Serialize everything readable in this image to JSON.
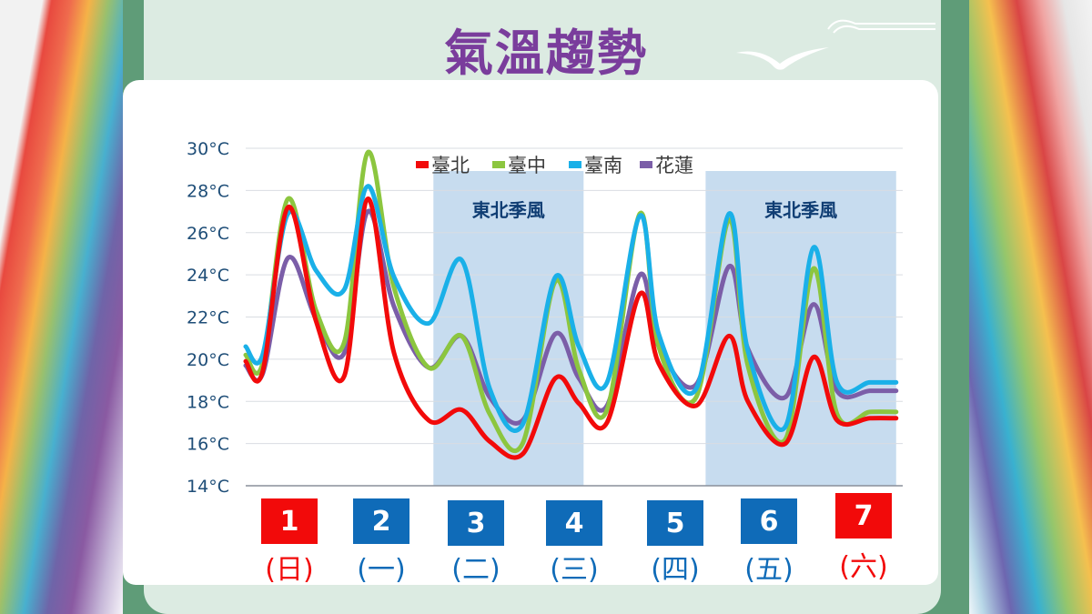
{
  "page": {
    "title": "氣溫趨勢",
    "colors": {
      "weekend": "#f20a0a",
      "weekday": "#0f6bb8",
      "title": "#7a3d9c",
      "shade": "#c7dcef"
    }
  },
  "chart_data": {
    "type": "line",
    "title": "",
    "ylim": [
      14,
      30
    ],
    "y_ticks": [
      "14°C",
      "16°C",
      "18°C",
      "20°C",
      "22°C",
      "24°C",
      "26°C",
      "28°C",
      "30°C"
    ],
    "y_tick_values": [
      14,
      16,
      18,
      20,
      22,
      24,
      26,
      28,
      30
    ],
    "xlim": [
      0,
      7
    ],
    "grid": true,
    "legend": {
      "placement": "top-center"
    },
    "categories": [
      {
        "number": "1",
        "weekday": "(日)",
        "weekend": true
      },
      {
        "number": "2",
        "weekday": "(一)",
        "weekend": false
      },
      {
        "number": "3",
        "weekday": "(二)",
        "weekend": false
      },
      {
        "number": "4",
        "weekday": "(三)",
        "weekend": false
      },
      {
        "number": "5",
        "weekday": "(四)",
        "weekend": false
      },
      {
        "number": "6",
        "weekday": "(五)",
        "weekend": false
      },
      {
        "number": "7",
        "weekday": "(六)",
        "weekend": true
      }
    ],
    "annotations": [
      {
        "label": "東北季風",
        "x_start": 2.0,
        "x_end": 3.6
      },
      {
        "label": "東北季風",
        "x_start": 4.9,
        "x_end": 6.93
      }
    ],
    "x": [
      0,
      0.18,
      0.45,
      0.75,
      1.05,
      1.3,
      1.58,
      1.95,
      2.3,
      2.6,
      2.95,
      3.3,
      3.55,
      3.85,
      4.2,
      4.4,
      4.8,
      5.15,
      5.35,
      5.75,
      6.05,
      6.3,
      6.65,
      6.93
    ],
    "series": [
      {
        "name": "臺北",
        "color": "#f20a0a",
        "values": [
          19.9,
          19.4,
          27.2,
          21.8,
          19.2,
          27.6,
          20.3,
          17.1,
          17.6,
          16.1,
          15.5,
          19.1,
          17.9,
          17.0,
          23.1,
          19.8,
          17.8,
          21.1,
          18.0,
          16.0,
          20.1,
          17.1,
          17.2,
          17.2
        ]
      },
      {
        "name": "臺中",
        "color": "#8cc63f",
        "values": [
          20.2,
          19.8,
          27.6,
          22.3,
          20.8,
          29.8,
          23.4,
          19.6,
          21.1,
          17.4,
          16.0,
          23.7,
          19.5,
          17.6,
          26.9,
          20.6,
          18.2,
          26.6,
          19.7,
          16.2,
          24.3,
          17.4,
          17.5,
          17.5
        ]
      },
      {
        "name": "臺南",
        "color": "#1ab0e8",
        "values": [
          20.6,
          20.2,
          26.9,
          24.2,
          23.3,
          28.2,
          23.9,
          21.7,
          24.7,
          18.6,
          16.9,
          23.9,
          20.6,
          18.9,
          26.8,
          21.2,
          18.6,
          26.9,
          20.4,
          16.8,
          25.3,
          18.9,
          18.9,
          18.9
        ]
      },
      {
        "name": "花蓮",
        "color": "#7b5ea8",
        "values": [
          19.7,
          19.3,
          24.8,
          21.9,
          20.3,
          27.0,
          22.5,
          19.6,
          21.1,
          18.2,
          17.1,
          21.2,
          19.1,
          17.8,
          24.0,
          20.6,
          18.8,
          24.4,
          20.5,
          18.2,
          22.6,
          18.5,
          18.5,
          18.5
        ]
      }
    ]
  }
}
